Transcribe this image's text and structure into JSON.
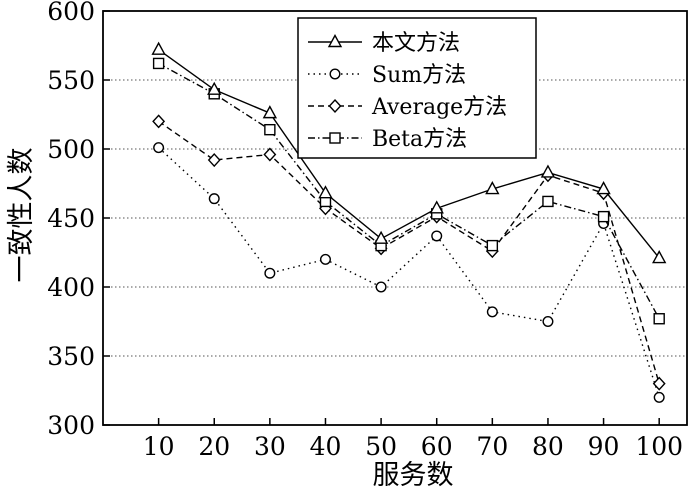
{
  "chart_data": {
    "type": "line",
    "xlabel": "服务数",
    "ylabel": "一致性人数",
    "x": [
      10,
      20,
      30,
      40,
      50,
      60,
      70,
      80,
      90,
      100
    ],
    "xlim": [
      0,
      105
    ],
    "ylim": [
      300,
      600
    ],
    "yticks": [
      300,
      350,
      400,
      450,
      500,
      550,
      600
    ],
    "grid": "horizontal dotted",
    "legend_position": "top-right",
    "series": [
      {
        "name": "本文方法",
        "marker": "triangle",
        "dash": "solid",
        "values": [
          572,
          543,
          526,
          468,
          435,
          457,
          471,
          483,
          471,
          421
        ]
      },
      {
        "name": "Sum方法",
        "marker": "circle",
        "dash": "dotted",
        "values": [
          501,
          464,
          410,
          420,
          400,
          437,
          382,
          375,
          446,
          320
        ]
      },
      {
        "name": "Average方法",
        "marker": "diamond",
        "dash": "dashed",
        "values": [
          520,
          492,
          496,
          457,
          428,
          451,
          426,
          481,
          468,
          330
        ]
      },
      {
        "name": "Beta方法",
        "marker": "square",
        "dash": "dashdot",
        "values": [
          562,
          540,
          514,
          462,
          430,
          453,
          430,
          462,
          451,
          377
        ]
      }
    ]
  }
}
